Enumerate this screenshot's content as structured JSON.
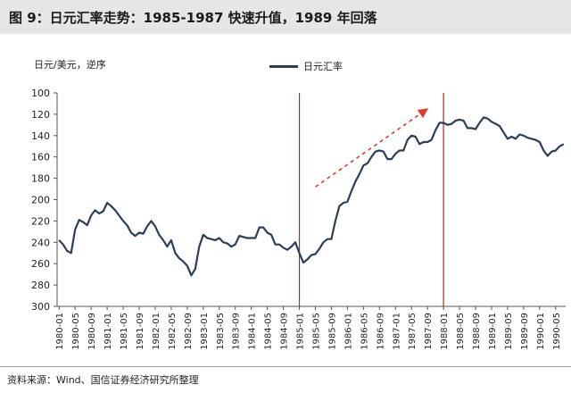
{
  "header": {
    "title": "图 9：日元汇率走势：1985-1987 快速升值，1989 年回落"
  },
  "footer": {
    "source": "资料来源：Wind、国信证券经济研究所整理"
  },
  "chart_data": {
    "type": "line",
    "ylabel": "日元/美元，逆序",
    "y_inverted": true,
    "ylim": [
      100,
      300
    ],
    "yticks": [
      100,
      120,
      140,
      160,
      180,
      200,
      220,
      240,
      260,
      280,
      300
    ],
    "xtick_labels": [
      "1980-01",
      "1980-05",
      "1980-09",
      "1981-01",
      "1981-05",
      "1981-09",
      "1982-01",
      "1982-05",
      "1982-09",
      "1983-01",
      "1983-05",
      "1983-09",
      "1984-01",
      "1984-05",
      "1984-09",
      "1985-01",
      "1985-05",
      "1985-09",
      "1986-01",
      "1986-05",
      "1986-09",
      "1987-01",
      "1987-05",
      "1987-09",
      "1988-01",
      "1988-05",
      "1988-09",
      "1989-01",
      "1989-05",
      "1989-09",
      "1990-01",
      "1990-05"
    ],
    "series": [
      {
        "name": "日元汇率",
        "color": "#2d3e57",
        "start": "1980-01",
        "frequency": "monthly",
        "values": [
          238,
          242,
          248,
          250,
          228,
          219,
          221,
          224,
          215,
          210,
          213,
          211,
          203,
          206,
          210,
          215,
          220,
          224,
          231,
          234,
          231,
          232,
          225,
          220,
          225,
          233,
          238,
          244,
          238,
          250,
          255,
          258,
          262,
          271,
          265,
          244,
          233,
          236,
          237,
          238,
          236,
          240,
          241,
          244,
          242,
          234,
          235,
          236,
          236,
          236,
          226,
          226,
          231,
          233,
          242,
          242,
          245,
          247,
          244,
          240,
          250,
          259,
          256,
          252,
          251,
          246,
          240,
          237,
          237,
          220,
          206,
          203,
          202,
          192,
          183,
          176,
          168,
          166,
          160,
          155,
          154,
          155,
          162,
          162,
          157,
          154,
          154,
          144,
          140,
          141,
          148,
          146,
          146,
          144,
          135,
          128,
          128,
          130,
          129,
          126,
          125,
          126,
          133,
          133,
          134,
          128,
          123,
          124,
          127,
          129,
          131,
          137,
          143,
          141,
          143,
          139,
          140,
          142,
          143,
          144,
          146,
          154,
          159,
          155,
          154,
          150,
          148
        ]
      }
    ],
    "annotations": [
      {
        "type": "vline",
        "x": "1985-01",
        "color": "#c8201e"
      },
      {
        "type": "vline",
        "x": "1988-01",
        "color": "#c8201e"
      },
      {
        "type": "arrow",
        "from": [
          "1985-05",
          188
        ],
        "to": [
          "1987-09",
          115
        ],
        "color": "#d9412c",
        "style": "dashed"
      }
    ],
    "grid": false,
    "legend_position": "top-center"
  }
}
